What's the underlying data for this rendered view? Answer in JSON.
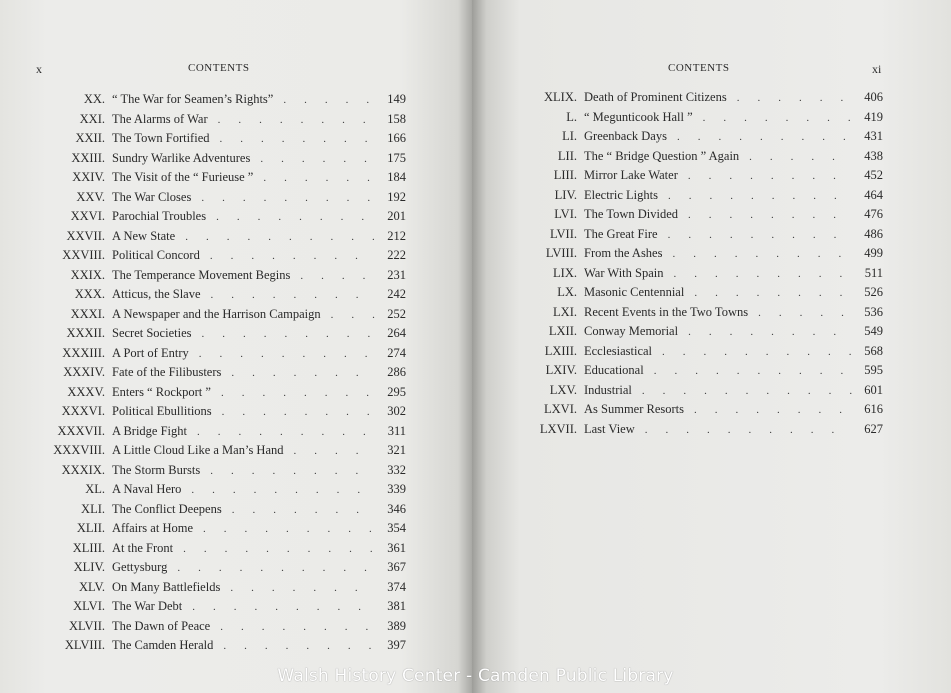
{
  "left_page": {
    "folio": "x",
    "running_head": "CONTENTS",
    "entries": [
      {
        "num": "XX.",
        "title": "“ The War for Seamen’s Rights”",
        "page": "149"
      },
      {
        "num": "XXI.",
        "title": "The Alarms of War",
        "page": "158"
      },
      {
        "num": "XXII.",
        "title": "The Town Fortified",
        "page": "166"
      },
      {
        "num": "XXIII.",
        "title": "Sundry Warlike Adventures",
        "page": "175"
      },
      {
        "num": "XXIV.",
        "title": "The Visit of the “ Furieuse ”",
        "page": "184"
      },
      {
        "num": "XXV.",
        "title": "The War Closes",
        "page": "192"
      },
      {
        "num": "XXVI.",
        "title": "Parochial Troubles",
        "page": "201"
      },
      {
        "num": "XXVII.",
        "title": "A New State",
        "page": "212"
      },
      {
        "num": "XXVIII.",
        "title": "Political Concord",
        "page": "222"
      },
      {
        "num": "XXIX.",
        "title": "The Temperance Movement Begins",
        "page": "231"
      },
      {
        "num": "XXX.",
        "title": "Atticus, the Slave",
        "page": "242"
      },
      {
        "num": "XXXI.",
        "title": "A Newspaper and the Harrison Campaign",
        "page": "252"
      },
      {
        "num": "XXXII.",
        "title": "Secret Societies",
        "page": "264"
      },
      {
        "num": "XXXIII.",
        "title": "A Port of Entry",
        "page": "274"
      },
      {
        "num": "XXXIV.",
        "title": "Fate of the Filibusters",
        "page": "286"
      },
      {
        "num": "XXXV.",
        "title": "Enters “ Rockport ”",
        "page": "295"
      },
      {
        "num": "XXXVI.",
        "title": "Political Ebullitions",
        "page": "302"
      },
      {
        "num": "XXXVII.",
        "title": "A Bridge Fight",
        "page": "311"
      },
      {
        "num": "XXXVIII.",
        "title": "A Little Cloud Like a Man’s Hand",
        "page": "321"
      },
      {
        "num": "XXXIX.",
        "title": "The Storm Bursts",
        "page": "332"
      },
      {
        "num": "XL.",
        "title": "A Naval Hero",
        "page": "339"
      },
      {
        "num": "XLI.",
        "title": "The Conflict Deepens",
        "page": "346"
      },
      {
        "num": "XLII.",
        "title": "Affairs at Home",
        "page": "354"
      },
      {
        "num": "XLIII.",
        "title": "At the Front",
        "page": "361"
      },
      {
        "num": "XLIV.",
        "title": "Gettysburg",
        "page": "367"
      },
      {
        "num": "XLV.",
        "title": "On Many Battlefields",
        "page": "374"
      },
      {
        "num": "XLVI.",
        "title": "The War Debt",
        "page": "381"
      },
      {
        "num": "XLVII.",
        "title": "The Dawn of Peace",
        "page": "389"
      },
      {
        "num": "XLVIII.",
        "title": "The Camden Herald",
        "page": "397"
      }
    ]
  },
  "right_page": {
    "folio": "xi",
    "running_head": "CONTENTS",
    "entries": [
      {
        "num": "XLIX.",
        "title": "Death of Prominent Citizens",
        "page": "406"
      },
      {
        "num": "L.",
        "title": "“ Megunticook Hall ”",
        "page": "419"
      },
      {
        "num": "LI.",
        "title": "Greenback Days",
        "page": "431"
      },
      {
        "num": "LII.",
        "title": "The “ Bridge Question ” Again",
        "page": "438"
      },
      {
        "num": "LIII.",
        "title": "Mirror Lake Water",
        "page": "452"
      },
      {
        "num": "LIV.",
        "title": "Electric Lights",
        "page": "464"
      },
      {
        "num": "LVI.",
        "title": "The Town Divided",
        "page": "476"
      },
      {
        "num": "LVII.",
        "title": "The Great Fire",
        "page": "486"
      },
      {
        "num": "LVIII.",
        "title": "From the Ashes",
        "page": "499"
      },
      {
        "num": "LIX.",
        "title": "War With Spain",
        "page": "511"
      },
      {
        "num": "LX.",
        "title": "Masonic Centennial",
        "page": "526"
      },
      {
        "num": "LXI.",
        "title": "Recent Events in the Two Towns",
        "page": "536"
      },
      {
        "num": "LXII.",
        "title": "Conway Memorial",
        "page": "549"
      },
      {
        "num": "LXIII.",
        "title": "Ecclesiastical",
        "page": "568"
      },
      {
        "num": "LXIV.",
        "title": "Educational",
        "page": "595"
      },
      {
        "num": "LXV.",
        "title": "Industrial",
        "page": "601"
      },
      {
        "num": "LXVI.",
        "title": "As Summer Resorts",
        "page": "616"
      },
      {
        "num": "LXVII.",
        "title": "Last View",
        "page": "627"
      }
    ]
  },
  "watermark": "Walsh History Center - Camden Public Library"
}
